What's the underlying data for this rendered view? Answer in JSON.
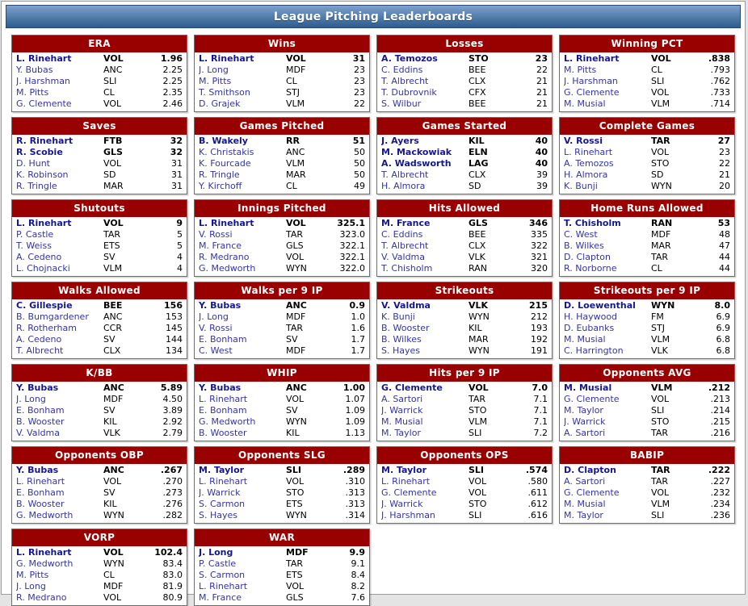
{
  "title": "League Pitching Leaderboards",
  "colors": {
    "board_header_bg": "#990000",
    "board_header_text": "#ffffff",
    "leader_name": "#17178c",
    "player_name": "#3434a4",
    "titlebar_gradient_top": "#7fa1cd",
    "titlebar_gradient_bottom": "#2d5b93"
  },
  "boards": [
    {
      "title": "ERA",
      "rows": [
        {
          "player": "L. Rinehart",
          "team": "VOL",
          "value": "1.96",
          "leader": true
        },
        {
          "player": "Y. Bubas",
          "team": "ANC",
          "value": "2.25",
          "leader": false
        },
        {
          "player": "J. Harshman",
          "team": "SLI",
          "value": "2.25",
          "leader": false
        },
        {
          "player": "M. Pitts",
          "team": "CL",
          "value": "2.35",
          "leader": false
        },
        {
          "player": "G. Clemente",
          "team": "VOL",
          "value": "2.46",
          "leader": false
        }
      ]
    },
    {
      "title": "Wins",
      "rows": [
        {
          "player": "L. Rinehart",
          "team": "VOL",
          "value": "31",
          "leader": true
        },
        {
          "player": "J. Long",
          "team": "MDF",
          "value": "23",
          "leader": false
        },
        {
          "player": "M. Pitts",
          "team": "CL",
          "value": "23",
          "leader": false
        },
        {
          "player": "T. Smithson",
          "team": "STJ",
          "value": "23",
          "leader": false
        },
        {
          "player": "D. Grajek",
          "team": "VLM",
          "value": "22",
          "leader": false
        }
      ]
    },
    {
      "title": "Losses",
      "rows": [
        {
          "player": "A. Temozos",
          "team": "STO",
          "value": "23",
          "leader": true
        },
        {
          "player": "C. Eddins",
          "team": "BEE",
          "value": "22",
          "leader": false
        },
        {
          "player": "T. Albrecht",
          "team": "CLX",
          "value": "21",
          "leader": false
        },
        {
          "player": "T. Dubrovnik",
          "team": "CFX",
          "value": "21",
          "leader": false
        },
        {
          "player": "S. Wilbur",
          "team": "BEE",
          "value": "21",
          "leader": false
        }
      ]
    },
    {
      "title": "Winning PCT",
      "rows": [
        {
          "player": "L. Rinehart",
          "team": "VOL",
          "value": ".838",
          "leader": true
        },
        {
          "player": "M. Pitts",
          "team": "CL",
          "value": ".793",
          "leader": false
        },
        {
          "player": "J. Harshman",
          "team": "SLI",
          "value": ".762",
          "leader": false
        },
        {
          "player": "G. Clemente",
          "team": "VOL",
          "value": ".733",
          "leader": false
        },
        {
          "player": "M. Musial",
          "team": "VLM",
          "value": ".714",
          "leader": false
        }
      ]
    },
    {
      "title": "Saves",
      "rows": [
        {
          "player": "R. Rinehart",
          "team": "FTB",
          "value": "32",
          "leader": true
        },
        {
          "player": "R. Scobie",
          "team": "GLS",
          "value": "32",
          "leader": true
        },
        {
          "player": "D. Hunt",
          "team": "VOL",
          "value": "31",
          "leader": false
        },
        {
          "player": "K. Robinson",
          "team": "SD",
          "value": "31",
          "leader": false
        },
        {
          "player": "R. Tringle",
          "team": "MAR",
          "value": "31",
          "leader": false
        }
      ]
    },
    {
      "title": "Games Pitched",
      "rows": [
        {
          "player": "B. Wakely",
          "team": "RR",
          "value": "51",
          "leader": true
        },
        {
          "player": "K. Christakis",
          "team": "ANC",
          "value": "50",
          "leader": false
        },
        {
          "player": "K. Fourcade",
          "team": "VLM",
          "value": "50",
          "leader": false
        },
        {
          "player": "R. Tringle",
          "team": "MAR",
          "value": "50",
          "leader": false
        },
        {
          "player": "Y. Kirchoff",
          "team": "CL",
          "value": "49",
          "leader": false
        }
      ]
    },
    {
      "title": "Games Started",
      "rows": [
        {
          "player": "J. Ayers",
          "team": "KIL",
          "value": "40",
          "leader": true
        },
        {
          "player": "M. Mackowiak",
          "team": "ELN",
          "value": "40",
          "leader": true
        },
        {
          "player": "A. Wadsworth",
          "team": "LAG",
          "value": "40",
          "leader": true
        },
        {
          "player": "T. Albrecht",
          "team": "CLX",
          "value": "39",
          "leader": false
        },
        {
          "player": "H. Almora",
          "team": "SD",
          "value": "39",
          "leader": false
        }
      ]
    },
    {
      "title": "Complete Games",
      "rows": [
        {
          "player": "V. Rossi",
          "team": "TAR",
          "value": "27",
          "leader": true
        },
        {
          "player": "L. Rinehart",
          "team": "VOL",
          "value": "23",
          "leader": false
        },
        {
          "player": "A. Temozos",
          "team": "STO",
          "value": "22",
          "leader": false
        },
        {
          "player": "H. Almora",
          "team": "SD",
          "value": "21",
          "leader": false
        },
        {
          "player": "K. Bunji",
          "team": "WYN",
          "value": "20",
          "leader": false
        }
      ]
    },
    {
      "title": "Shutouts",
      "rows": [
        {
          "player": "L. Rinehart",
          "team": "VOL",
          "value": "9",
          "leader": true
        },
        {
          "player": "P. Castle",
          "team": "TAR",
          "value": "5",
          "leader": false
        },
        {
          "player": "T. Weiss",
          "team": "ETS",
          "value": "5",
          "leader": false
        },
        {
          "player": "A. Cedeno",
          "team": "SV",
          "value": "4",
          "leader": false
        },
        {
          "player": "L. Chojnacki",
          "team": "VLM",
          "value": "4",
          "leader": false
        }
      ]
    },
    {
      "title": "Innings Pitched",
      "rows": [
        {
          "player": "L. Rinehart",
          "team": "VOL",
          "value": "325.1",
          "leader": true
        },
        {
          "player": "V. Rossi",
          "team": "TAR",
          "value": "323.0",
          "leader": false
        },
        {
          "player": "M. France",
          "team": "GLS",
          "value": "322.1",
          "leader": false
        },
        {
          "player": "R. Medrano",
          "team": "VOL",
          "value": "322.1",
          "leader": false
        },
        {
          "player": "G. Medworth",
          "team": "WYN",
          "value": "322.0",
          "leader": false
        }
      ]
    },
    {
      "title": "Hits Allowed",
      "rows": [
        {
          "player": "M. France",
          "team": "GLS",
          "value": "346",
          "leader": true
        },
        {
          "player": "C. Eddins",
          "team": "BEE",
          "value": "335",
          "leader": false
        },
        {
          "player": "T. Albrecht",
          "team": "CLX",
          "value": "322",
          "leader": false
        },
        {
          "player": "V. Valdma",
          "team": "VLK",
          "value": "321",
          "leader": false
        },
        {
          "player": "T. Chisholm",
          "team": "RAN",
          "value": "320",
          "leader": false
        }
      ]
    },
    {
      "title": "Home Runs Allowed",
      "rows": [
        {
          "player": "T. Chisholm",
          "team": "RAN",
          "value": "53",
          "leader": true
        },
        {
          "player": "C. West",
          "team": "MDF",
          "value": "48",
          "leader": false
        },
        {
          "player": "B. Wilkes",
          "team": "MAR",
          "value": "47",
          "leader": false
        },
        {
          "player": "D. Clapton",
          "team": "TAR",
          "value": "44",
          "leader": false
        },
        {
          "player": "R. Norborne",
          "team": "CL",
          "value": "44",
          "leader": false
        }
      ]
    },
    {
      "title": "Walks Allowed",
      "rows": [
        {
          "player": "C. Gillespie",
          "team": "BEE",
          "value": "156",
          "leader": true
        },
        {
          "player": "B. Bumgardener",
          "team": "ANC",
          "value": "153",
          "leader": false
        },
        {
          "player": "R. Rotherham",
          "team": "CCR",
          "value": "145",
          "leader": false
        },
        {
          "player": "A. Cedeno",
          "team": "SV",
          "value": "144",
          "leader": false
        },
        {
          "player": "T. Albrecht",
          "team": "CLX",
          "value": "134",
          "leader": false
        }
      ]
    },
    {
      "title": "Walks per 9 IP",
      "rows": [
        {
          "player": "Y. Bubas",
          "team": "ANC",
          "value": "0.9",
          "leader": true
        },
        {
          "player": "J. Long",
          "team": "MDF",
          "value": "1.0",
          "leader": false
        },
        {
          "player": "V. Rossi",
          "team": "TAR",
          "value": "1.6",
          "leader": false
        },
        {
          "player": "E. Bonham",
          "team": "SV",
          "value": "1.7",
          "leader": false
        },
        {
          "player": "C. West",
          "team": "MDF",
          "value": "1.7",
          "leader": false
        }
      ]
    },
    {
      "title": "Strikeouts",
      "rows": [
        {
          "player": "V. Valdma",
          "team": "VLK",
          "value": "215",
          "leader": true
        },
        {
          "player": "K. Bunji",
          "team": "WYN",
          "value": "212",
          "leader": false
        },
        {
          "player": "B. Wooster",
          "team": "KIL",
          "value": "193",
          "leader": false
        },
        {
          "player": "B. Wilkes",
          "team": "MAR",
          "value": "192",
          "leader": false
        },
        {
          "player": "S. Hayes",
          "team": "WYN",
          "value": "191",
          "leader": false
        }
      ]
    },
    {
      "title": "Strikeouts per 9 IP",
      "rows": [
        {
          "player": "D. Loewenthal",
          "team": "WYN",
          "value": "8.0",
          "leader": true
        },
        {
          "player": "H. Haywood",
          "team": "FM",
          "value": "6.9",
          "leader": false
        },
        {
          "player": "D. Eubanks",
          "team": "STJ",
          "value": "6.9",
          "leader": false
        },
        {
          "player": "M. Musial",
          "team": "VLM",
          "value": "6.8",
          "leader": false
        },
        {
          "player": "C. Harrington",
          "team": "VLK",
          "value": "6.8",
          "leader": false
        }
      ]
    },
    {
      "title": "K/BB",
      "rows": [
        {
          "player": "Y. Bubas",
          "team": "ANC",
          "value": "5.89",
          "leader": true
        },
        {
          "player": "J. Long",
          "team": "MDF",
          "value": "4.50",
          "leader": false
        },
        {
          "player": "E. Bonham",
          "team": "SV",
          "value": "3.89",
          "leader": false
        },
        {
          "player": "B. Wooster",
          "team": "KIL",
          "value": "2.92",
          "leader": false
        },
        {
          "player": "V. Valdma",
          "team": "VLK",
          "value": "2.79",
          "leader": false
        }
      ]
    },
    {
      "title": "WHIP",
      "rows": [
        {
          "player": "Y. Bubas",
          "team": "ANC",
          "value": "1.00",
          "leader": true
        },
        {
          "player": "L. Rinehart",
          "team": "VOL",
          "value": "1.07",
          "leader": false
        },
        {
          "player": "E. Bonham",
          "team": "SV",
          "value": "1.09",
          "leader": false
        },
        {
          "player": "G. Medworth",
          "team": "WYN",
          "value": "1.09",
          "leader": false
        },
        {
          "player": "B. Wooster",
          "team": "KIL",
          "value": "1.13",
          "leader": false
        }
      ]
    },
    {
      "title": "Hits per 9 IP",
      "rows": [
        {
          "player": "G. Clemente",
          "team": "VOL",
          "value": "7.0",
          "leader": true
        },
        {
          "player": "A. Sartori",
          "team": "TAR",
          "value": "7.1",
          "leader": false
        },
        {
          "player": "J. Warrick",
          "team": "STO",
          "value": "7.1",
          "leader": false
        },
        {
          "player": "M. Musial",
          "team": "VLM",
          "value": "7.1",
          "leader": false
        },
        {
          "player": "M. Taylor",
          "team": "SLI",
          "value": "7.2",
          "leader": false
        }
      ]
    },
    {
      "title": "Opponents AVG",
      "rows": [
        {
          "player": "M. Musial",
          "team": "VLM",
          "value": ".212",
          "leader": true
        },
        {
          "player": "G. Clemente",
          "team": "VOL",
          "value": ".213",
          "leader": false
        },
        {
          "player": "M. Taylor",
          "team": "SLI",
          "value": ".214",
          "leader": false
        },
        {
          "player": "J. Warrick",
          "team": "STO",
          "value": ".215",
          "leader": false
        },
        {
          "player": "A. Sartori",
          "team": "TAR",
          "value": ".216",
          "leader": false
        }
      ]
    },
    {
      "title": "Opponents OBP",
      "rows": [
        {
          "player": "Y. Bubas",
          "team": "ANC",
          "value": ".267",
          "leader": true
        },
        {
          "player": "L. Rinehart",
          "team": "VOL",
          "value": ".270",
          "leader": false
        },
        {
          "player": "E. Bonham",
          "team": "SV",
          "value": ".273",
          "leader": false
        },
        {
          "player": "B. Wooster",
          "team": "KIL",
          "value": ".276",
          "leader": false
        },
        {
          "player": "G. Medworth",
          "team": "WYN",
          "value": ".282",
          "leader": false
        }
      ]
    },
    {
      "title": "Opponents SLG",
      "rows": [
        {
          "player": "M. Taylor",
          "team": "SLI",
          "value": ".289",
          "leader": true
        },
        {
          "player": "L. Rinehart",
          "team": "VOL",
          "value": ".310",
          "leader": false
        },
        {
          "player": "J. Warrick",
          "team": "STO",
          "value": ".313",
          "leader": false
        },
        {
          "player": "S. Carmon",
          "team": "ETS",
          "value": ".313",
          "leader": false
        },
        {
          "player": "S. Hayes",
          "team": "WYN",
          "value": ".314",
          "leader": false
        }
      ]
    },
    {
      "title": "Opponents OPS",
      "rows": [
        {
          "player": "M. Taylor",
          "team": "SLI",
          "value": ".574",
          "leader": true
        },
        {
          "player": "L. Rinehart",
          "team": "VOL",
          "value": ".580",
          "leader": false
        },
        {
          "player": "G. Clemente",
          "team": "VOL",
          "value": ".611",
          "leader": false
        },
        {
          "player": "J. Warrick",
          "team": "STO",
          "value": ".612",
          "leader": false
        },
        {
          "player": "J. Harshman",
          "team": "SLI",
          "value": ".616",
          "leader": false
        }
      ]
    },
    {
      "title": "BABIP",
      "rows": [
        {
          "player": "D. Clapton",
          "team": "TAR",
          "value": ".222",
          "leader": true
        },
        {
          "player": "A. Sartori",
          "team": "TAR",
          "value": ".227",
          "leader": false
        },
        {
          "player": "G. Clemente",
          "team": "VOL",
          "value": ".232",
          "leader": false
        },
        {
          "player": "M. Musial",
          "team": "VLM",
          "value": ".234",
          "leader": false
        },
        {
          "player": "M. Taylor",
          "team": "SLI",
          "value": ".236",
          "leader": false
        }
      ]
    },
    {
      "title": "VORP",
      "rows": [
        {
          "player": "L. Rinehart",
          "team": "VOL",
          "value": "102.4",
          "leader": true
        },
        {
          "player": "G. Medworth",
          "team": "WYN",
          "value": "83.4",
          "leader": false
        },
        {
          "player": "M. Pitts",
          "team": "CL",
          "value": "83.0",
          "leader": false
        },
        {
          "player": "J. Long",
          "team": "MDF",
          "value": "81.9",
          "leader": false
        },
        {
          "player": "R. Medrano",
          "team": "VOL",
          "value": "80.9",
          "leader": false
        }
      ]
    },
    {
      "title": "WAR",
      "rows": [
        {
          "player": "J. Long",
          "team": "MDF",
          "value": "9.9",
          "leader": true
        },
        {
          "player": "P. Castle",
          "team": "TAR",
          "value": "9.1",
          "leader": false
        },
        {
          "player": "S. Carmon",
          "team": "ETS",
          "value": "8.4",
          "leader": false
        },
        {
          "player": "L. Rinehart",
          "team": "VOL",
          "value": "8.2",
          "leader": false
        },
        {
          "player": "M. France",
          "team": "GLS",
          "value": "7.6",
          "leader": false
        }
      ]
    }
  ]
}
